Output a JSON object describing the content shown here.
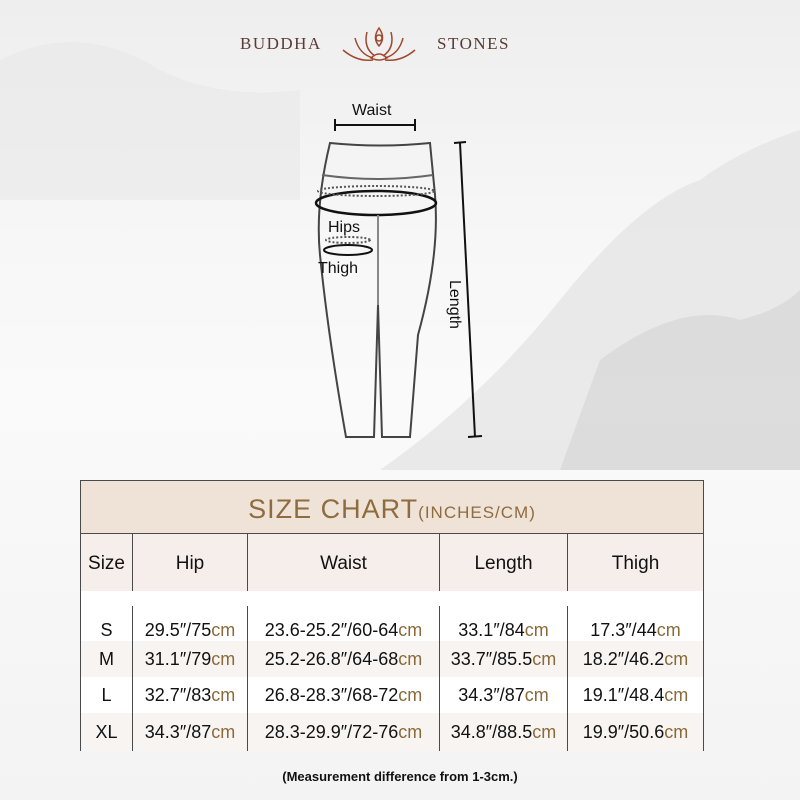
{
  "brand": {
    "left": "BUDDHA",
    "right": "STONES",
    "logo_icon": "lotus-meditation-icon",
    "color": "#a0482c"
  },
  "diagram": {
    "waist": "Waist",
    "hips": "Hips",
    "thigh": "Thigh",
    "length": "Length"
  },
  "chart": {
    "title": "SIZE CHART",
    "title_units": "(INCHES/CM)",
    "headers": [
      "Size",
      "Hip",
      "Waist",
      "Length",
      "Thigh"
    ],
    "rows": [
      {
        "size": "S",
        "hip": "29.5″/75",
        "waist": "23.6-25.2″/60-64",
        "length": "33.1″/84",
        "thigh": "17.3″/44"
      },
      {
        "size": "M",
        "hip": "31.1″/79",
        "waist": "25.2-26.8″/64-68",
        "length": "33.7″/85.5",
        "thigh": "18.2″/46.2"
      },
      {
        "size": "L",
        "hip": "32.7″/83",
        "waist": "26.8-28.3″/68-72",
        "length": "34.3″/87",
        "thigh": "19.1″/48.4"
      },
      {
        "size": "XL",
        "hip": "34.3″/87",
        "waist": "28.3-29.9″/72-76",
        "length": "34.8″/88.5",
        "thigh": "19.9″/50.6"
      }
    ],
    "unit": "cm",
    "title_color": "#8e6c3f",
    "header_bg": "#efe3d7"
  },
  "note": "(Measurement difference from 1-3cm.)"
}
